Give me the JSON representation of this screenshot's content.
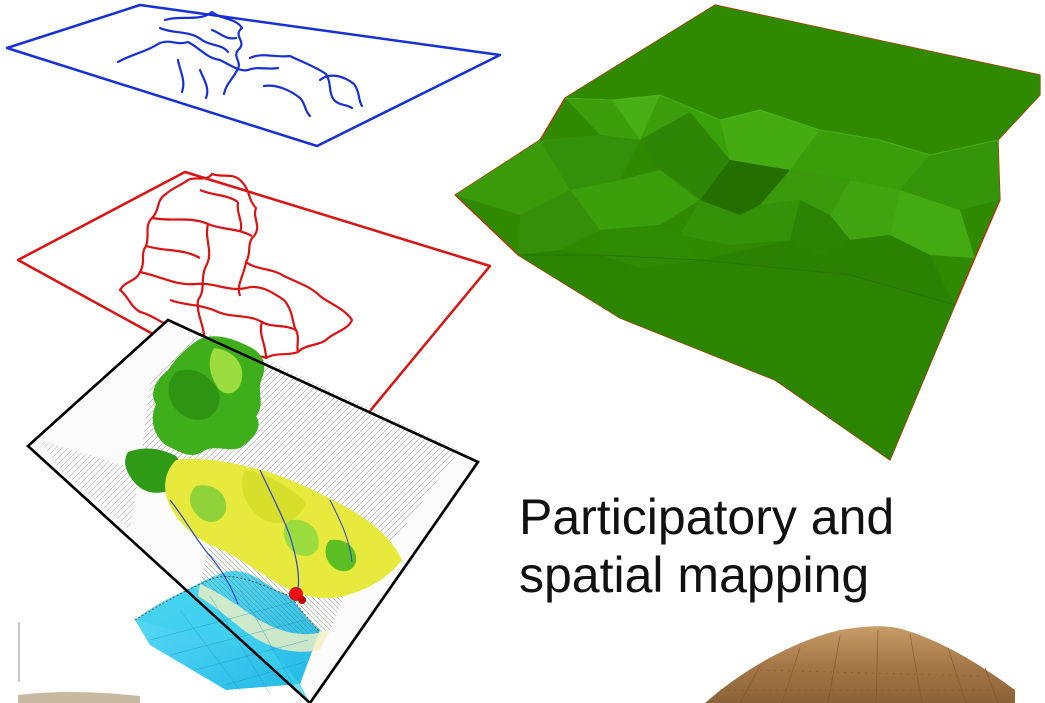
{
  "caption": {
    "line1": "Participatory and",
    "line2": "spatial mapping"
  },
  "layers": [
    {
      "name": "rivers-layer",
      "color": "#1530d8"
    },
    {
      "name": "boundaries-layer",
      "color": "#dd1111"
    },
    {
      "name": "land-use-map-layer",
      "color": "#000000"
    }
  ],
  "terrain": {
    "color": "#2f8a00",
    "edge_color": "#cc2200"
  },
  "colors": {
    "forest": "#3fae1b",
    "light_forest": "#9bdc3e",
    "farmland": "#e7ea3c",
    "sea": "#3ed0f0",
    "settlement": "#ee1010",
    "thatch": "#b98a55"
  }
}
